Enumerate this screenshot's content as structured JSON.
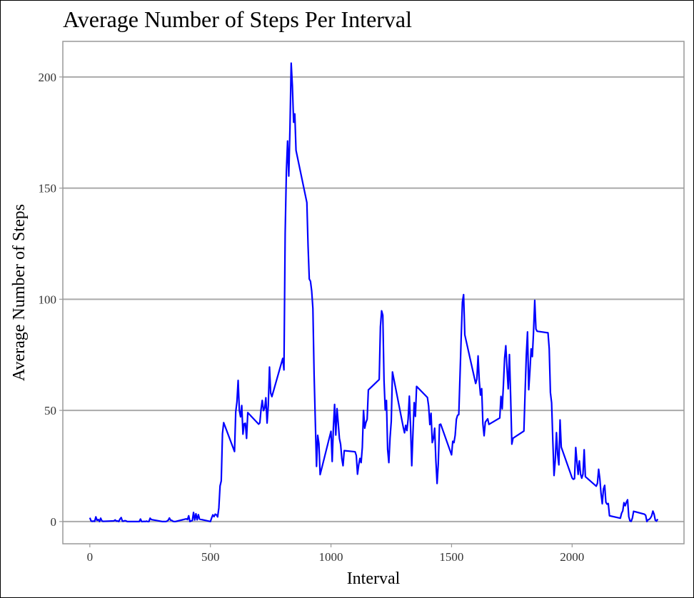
{
  "chart_data": {
    "type": "line",
    "title": "Average Number of Steps Per Interval",
    "x_label": "Interval",
    "y_label": "Average Number of Steps",
    "color": "#0000ff",
    "grid": true,
    "xlim": [
      -112,
      2464
    ],
    "ylim": [
      -10,
      216
    ],
    "xticks": [
      0,
      500,
      1000,
      1500,
      2000
    ],
    "yticks": [
      0,
      50,
      100,
      150,
      200
    ],
    "x": [
      0,
      5,
      10,
      15,
      20,
      25,
      30,
      35,
      40,
      45,
      50,
      55,
      100,
      105,
      110,
      115,
      120,
      125,
      130,
      135,
      140,
      145,
      150,
      155,
      200,
      205,
      210,
      215,
      220,
      225,
      230,
      235,
      240,
      245,
      250,
      255,
      300,
      305,
      310,
      315,
      320,
      325,
      330,
      335,
      340,
      345,
      350,
      355,
      400,
      405,
      410,
      415,
      420,
      425,
      430,
      435,
      440,
      445,
      450,
      455,
      500,
      505,
      510,
      515,
      520,
      525,
      530,
      535,
      540,
      545,
      550,
      555,
      600,
      605,
      610,
      615,
      620,
      625,
      630,
      635,
      640,
      645,
      650,
      655,
      700,
      705,
      710,
      715,
      720,
      725,
      730,
      735,
      740,
      745,
      750,
      755,
      800,
      805,
      810,
      815,
      820,
      825,
      830,
      835,
      840,
      845,
      850,
      855,
      900,
      905,
      910,
      915,
      920,
      925,
      930,
      935,
      940,
      945,
      950,
      955,
      1000,
      1005,
      1010,
      1015,
      1020,
      1025,
      1030,
      1035,
      1040,
      1045,
      1050,
      1055,
      1100,
      1105,
      1110,
      1115,
      1120,
      1125,
      1130,
      1135,
      1140,
      1145,
      1150,
      1155,
      1200,
      1205,
      1210,
      1215,
      1220,
      1225,
      1230,
      1235,
      1240,
      1245,
      1250,
      1255,
      1300,
      1305,
      1310,
      1315,
      1320,
      1325,
      1330,
      1335,
      1340,
      1345,
      1350,
      1355,
      1400,
      1405,
      1410,
      1415,
      1420,
      1425,
      1430,
      1435,
      1440,
      1445,
      1450,
      1455,
      1500,
      1505,
      1510,
      1515,
      1520,
      1525,
      1530,
      1535,
      1540,
      1545,
      1550,
      1555,
      1600,
      1605,
      1610,
      1615,
      1620,
      1625,
      1630,
      1635,
      1640,
      1645,
      1650,
      1655,
      1700,
      1705,
      1710,
      1715,
      1720,
      1725,
      1730,
      1735,
      1740,
      1745,
      1750,
      1755,
      1800,
      1805,
      1810,
      1815,
      1820,
      1825,
      1830,
      1835,
      1840,
      1845,
      1850,
      1855,
      1900,
      1905,
      1910,
      1915,
      1920,
      1925,
      1930,
      1935,
      1940,
      1945,
      1950,
      1955,
      2000,
      2005,
      2010,
      2015,
      2020,
      2025,
      2030,
      2035,
      2040,
      2045,
      2050,
      2055,
      2100,
      2105,
      2110,
      2115,
      2120,
      2125,
      2130,
      2135,
      2140,
      2145,
      2150,
      2155,
      2200,
      2205,
      2210,
      2215,
      2220,
      2225,
      2230,
      2235,
      2240,
      2245,
      2250,
      2255,
      2300,
      2305,
      2310,
      2315,
      2320,
      2325,
      2330,
      2335,
      2340,
      2345,
      2350,
      2355
    ],
    "values": [
      1.7,
      0.3,
      0.1,
      0.2,
      0.1,
      2.1,
      0.5,
      0.9,
      0,
      1.5,
      0.3,
      0.1,
      0.3,
      0.7,
      0.2,
      0.3,
      0,
      1.1,
      1.8,
      0.2,
      0.2,
      0.4,
      0.3,
      0,
      0,
      0,
      1.1,
      0,
      0,
      0.1,
      0,
      0.2,
      0,
      0,
      1.5,
      0.9,
      0,
      0,
      0,
      0,
      0.2,
      0.6,
      1.6,
      0.6,
      0.5,
      0.1,
      0,
      0,
      1.2,
      0.9,
      2.6,
      0,
      0.3,
      0.4,
      4.1,
      0.7,
      3.5,
      0.8,
      3.1,
      1.1,
      0,
      1.6,
      3,
      2.2,
      3.3,
      3,
      2.1,
      6.1,
      16,
      18.3,
      39.5,
      44.5,
      31.5,
      49.3,
      53.8,
      63.5,
      50,
      47.1,
      52.2,
      39.3,
      44,
      44.2,
      37.4,
      49,
      43.8,
      44.4,
      50.5,
      54.5,
      49.9,
      51,
      55.7,
      44.3,
      52.3,
      69.5,
      57.8,
      56.2,
      73.4,
      68.2,
      129.4,
      157.5,
      171.2,
      155.4,
      177.3,
      206.2,
      195.9,
      179.6,
      183.4,
      167,
      143.5,
      124,
      109.1,
      108.1,
      103.7,
      95.9,
      66.2,
      45.2,
      24.8,
      38.8,
      35,
      21.1,
      40.6,
      27,
      42.4,
      52.7,
      38.9,
      50.8,
      44.3,
      37.4,
      34.7,
      28.3,
      25.1,
      31.9,
      31.4,
      29.7,
      21.3,
      25.5,
      28.4,
      26.5,
      33.4,
      50,
      42,
      44.6,
      46,
      59.2,
      63.9,
      87.6,
      94.8,
      92.8,
      63.4,
      50.2,
      54.5,
      32.4,
      26.5,
      37.7,
      45.1,
      67.3,
      42.3,
      39.9,
      43.3,
      40.9,
      46.2,
      56.4,
      42.8,
      25.1,
      39.9,
      53.5,
      47.3,
      60.8,
      55.8,
      51.9,
      43.6,
      48.7,
      35.5,
      37.5,
      42,
      27.5,
      17.1,
      26.1,
      43.6,
      43.8,
      30,
      36.1,
      35.5,
      38.8,
      46,
      47.8,
      48.1,
      65.3,
      82.9,
      98.7,
      102.1,
      84,
      62.1,
      64.1,
      74.5,
      63.2,
      56.9,
      59.8,
      43.9,
      38.6,
      44.7,
      45.5,
      46.2,
      43.7,
      46.6,
      56.3,
      50.7,
      61.2,
      73.4,
      79.1,
      68.9,
      59.7,
      75.1,
      56.5,
      34.8,
      37.5,
      40.7,
      58,
      74.7,
      85.3,
      59.3,
      67.8,
      77.7,
      74.2,
      85.3,
      99.5,
      86.6,
      85.6,
      84.9,
      77.8,
      58,
      53.4,
      36.3,
      20.7,
      27.4,
      40,
      30.2,
      25.5,
      45.7,
      33.5,
      19.6,
      19,
      19.3,
      33.3,
      26.8,
      21.2,
      27.3,
      21.3,
      19.5,
      21.3,
      32.3,
      20.2,
      15.9,
      17.2,
      23.5,
      19.2,
      12.5,
      8,
      14.7,
      16.3,
      8.7,
      7.8,
      8.1,
      2.6,
      1.5,
      3.7,
      4.8,
      8.5,
      7.1,
      8.7,
      9.8,
      2.2,
      0.3,
      0.1,
      1.6,
      4.6,
      3.3,
      2.8,
      0,
      0.8,
      1,
      1.6,
      2.6,
      4.7,
      3.3,
      0.6,
      0.2,
      1.1
    ]
  }
}
